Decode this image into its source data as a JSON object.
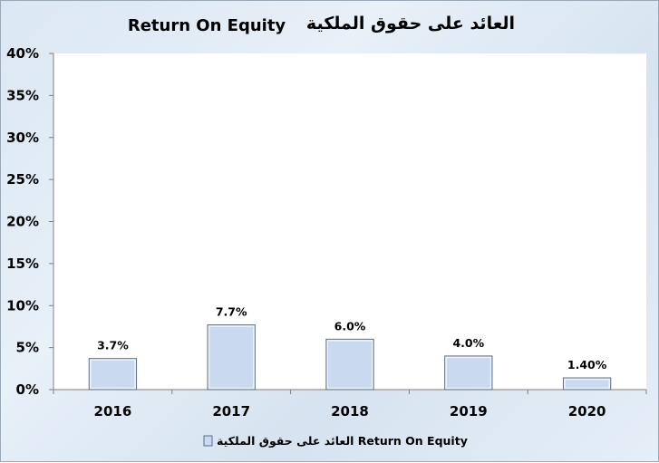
{
  "chart_data": {
    "type": "bar",
    "title_en": "Return On Equity",
    "title_ar": "العائد على حقوق الملكية",
    "categories": [
      "2016",
      "2017",
      "2018",
      "2019",
      "2020"
    ],
    "series": [
      {
        "name": "العائد على حقوق الملكية Return On Equity",
        "values": [
          3.7,
          7.7,
          6.0,
          4.0,
          1.4
        ],
        "labels": [
          "3.7%",
          "7.7%",
          "6.0%",
          "4.0%",
          "1.40%"
        ]
      }
    ],
    "yticks": [
      "0%",
      "5%",
      "10%",
      "15%",
      "20%",
      "25%",
      "30%",
      "35%",
      "40%"
    ],
    "ylim": [
      0,
      40
    ],
    "grid": false,
    "legend_position": "bottom",
    "colors": {
      "bar_fill": "#c9daf0",
      "bar_stroke": "#5b6f8a",
      "plot_bg": "#ffffff"
    }
  }
}
